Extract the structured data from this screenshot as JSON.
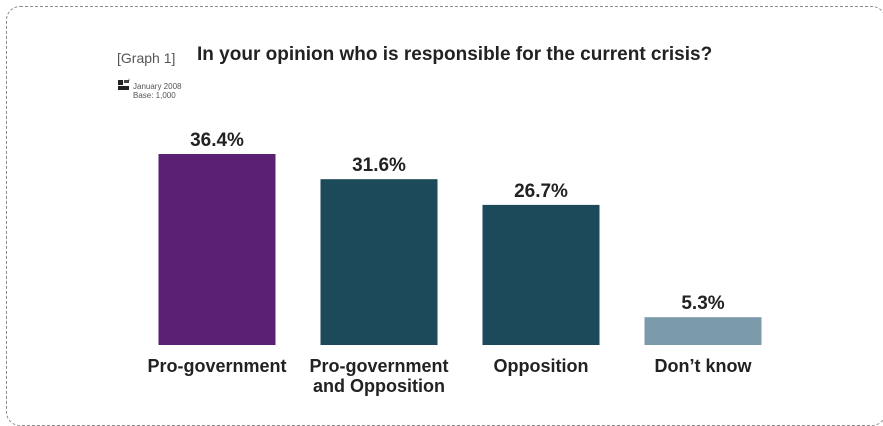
{
  "header": {
    "graph_tag": "[Graph 1]",
    "title": "In your opinion who is responsible for the current crisis?",
    "date": "January 2008",
    "base": "Base: 1,000"
  },
  "chart_data": {
    "type": "bar",
    "title": "In your opinion who is responsible for the current crisis?",
    "categories": [
      [
        "Pro-government"
      ],
      [
        "Pro-government",
        "and Opposition"
      ],
      [
        "Opposition"
      ],
      [
        "Don’t know"
      ]
    ],
    "values": [
      36.4,
      31.6,
      26.7,
      5.3
    ],
    "value_labels": [
      "36.4%",
      "31.6%",
      "26.7%",
      "5.3%"
    ],
    "colors": [
      "#5b1f74",
      "#1c4a5a",
      "#1c4a5a",
      "#7b9bab"
    ],
    "ylim": [
      0,
      36.4
    ],
    "grid": false,
    "xlabel": "",
    "ylabel": ""
  }
}
